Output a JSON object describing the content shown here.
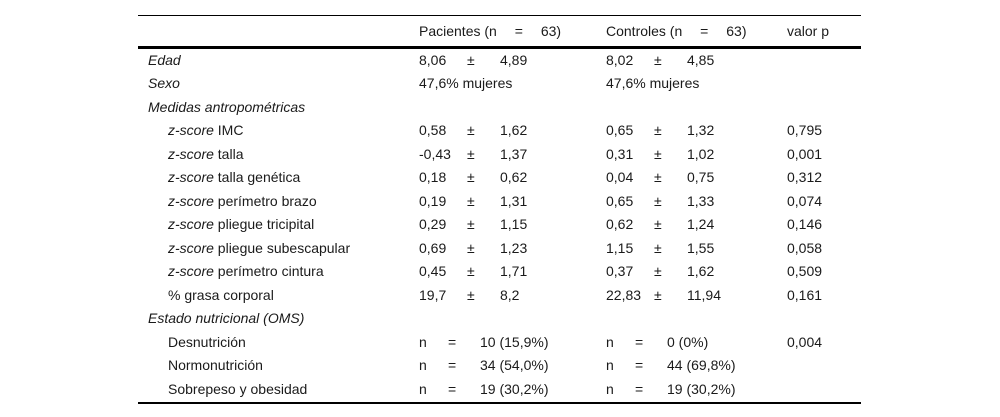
{
  "page": {
    "background": "#ffffff",
    "text_color": "#1a1a1a",
    "rule_color": "#000000"
  },
  "header": {
    "patients": {
      "label": "Pacientes (n",
      "eq": "=",
      "count": "63)"
    },
    "controls": {
      "label": "Controles (n",
      "eq": "=",
      "count": "63)"
    },
    "p_label": "valor p"
  },
  "rows": [
    {
      "name": "edad",
      "label_italic": "Edad",
      "label_rest": "",
      "indent": false,
      "patients": {
        "type": "triple",
        "a": "8,06",
        "sep": "±",
        "b": "4,89"
      },
      "controls": {
        "type": "triple",
        "a": "8,02",
        "sep": "±",
        "b": "4,85"
      },
      "p": ""
    },
    {
      "name": "sexo",
      "label_italic": "Sexo",
      "label_rest": "",
      "indent": false,
      "patients": {
        "type": "text",
        "text": "47,6% mujeres"
      },
      "controls": {
        "type": "text",
        "text": "47,6% mujeres"
      },
      "p": ""
    },
    {
      "name": "medidas-antropometricas",
      "label_italic": "Medidas antropométricas",
      "label_rest": "",
      "indent": false,
      "patients": {
        "type": "empty"
      },
      "controls": {
        "type": "empty"
      },
      "p": ""
    },
    {
      "name": "zscore-imc",
      "label_italic": "z-score",
      "label_rest": " IMC",
      "indent": true,
      "patients": {
        "type": "triple",
        "a": "0,58",
        "sep": "±",
        "b": "1,62"
      },
      "controls": {
        "type": "triple",
        "a": "0,65",
        "sep": "±",
        "b": "1,32"
      },
      "p": "0,795"
    },
    {
      "name": "zscore-talla",
      "label_italic": "z-score",
      "label_rest": " talla",
      "indent": true,
      "patients": {
        "type": "triple",
        "a": "-0,43",
        "sep": "±",
        "b": "1,37"
      },
      "controls": {
        "type": "triple",
        "a": "0,31",
        "sep": "±",
        "b": "1,02"
      },
      "p": "0,001"
    },
    {
      "name": "zscore-talla-genetica",
      "label_italic": "z-score",
      "label_rest": " talla genética",
      "indent": true,
      "patients": {
        "type": "triple",
        "a": "0,18",
        "sep": "±",
        "b": "0,62"
      },
      "controls": {
        "type": "triple",
        "a": "0,04",
        "sep": "±",
        "b": "0,75"
      },
      "p": "0,312"
    },
    {
      "name": "zscore-perimetro-brazo",
      "label_italic": "z-score",
      "label_rest": " perímetro brazo",
      "indent": true,
      "patients": {
        "type": "triple",
        "a": "0,19",
        "sep": "±",
        "b": "1,31"
      },
      "controls": {
        "type": "triple",
        "a": "0,65",
        "sep": "±",
        "b": "1,33"
      },
      "p": "0,074"
    },
    {
      "name": "zscore-pliegue-tricipital",
      "label_italic": "z-score",
      "label_rest": " pliegue tricipital",
      "indent": true,
      "patients": {
        "type": "triple",
        "a": "0,29",
        "sep": "±",
        "b": "1,15"
      },
      "controls": {
        "type": "triple",
        "a": "0,62",
        "sep": "±",
        "b": "1,24"
      },
      "p": "0,146"
    },
    {
      "name": "zscore-pliegue-subescapular",
      "label_italic": "z-score",
      "label_rest": " pliegue subescapular",
      "indent": true,
      "patients": {
        "type": "triple",
        "a": "0,69",
        "sep": "±",
        "b": "1,23"
      },
      "controls": {
        "type": "triple",
        "a": "1,15",
        "sep": "±",
        "b": "1,55"
      },
      "p": "0,058"
    },
    {
      "name": "zscore-perimetro-cintura",
      "label_italic": "z-score",
      "label_rest": " perímetro cintura",
      "indent": true,
      "patients": {
        "type": "triple",
        "a": "0,45",
        "sep": "±",
        "b": "1,71"
      },
      "controls": {
        "type": "triple",
        "a": "0,37",
        "sep": "±",
        "b": "1,62"
      },
      "p": "0,509"
    },
    {
      "name": "grasa-corporal",
      "label_italic": "",
      "label_rest": "% grasa corporal",
      "indent": true,
      "patients": {
        "type": "triple",
        "a": "19,7",
        "sep": "±",
        "b": "8,2"
      },
      "controls": {
        "type": "triple",
        "a": "22,83",
        "sep": "±",
        "b": "11,94"
      },
      "p": "0,161"
    },
    {
      "name": "estado-nutricional-oms",
      "label_italic": "Estado nutricional (OMS)",
      "label_rest": "",
      "indent": false,
      "patients": {
        "type": "empty"
      },
      "controls": {
        "type": "empty"
      },
      "p": ""
    },
    {
      "name": "desnutricion",
      "label_italic": "",
      "label_rest": "Desnutrición",
      "indent": true,
      "patients": {
        "type": "ntriple",
        "a": "n",
        "sep": "=",
        "b": "10 (15,9%)"
      },
      "controls": {
        "type": "ntriple",
        "a": "n",
        "sep": "=",
        "b": "0 (0%)"
      },
      "p": "0,004"
    },
    {
      "name": "normonutricion",
      "label_italic": "",
      "label_rest": "Normonutrición",
      "indent": true,
      "patients": {
        "type": "ntriple",
        "a": "n",
        "sep": "=",
        "b": "34 (54,0%)"
      },
      "controls": {
        "type": "ntriple",
        "a": "n",
        "sep": "=",
        "b": "44 (69,8%)"
      },
      "p": ""
    },
    {
      "name": "sobrepeso-y-obesidad",
      "label_italic": "",
      "label_rest": "Sobrepeso y obesidad",
      "indent": true,
      "patients": {
        "type": "ntriple",
        "a": "n",
        "sep": "=",
        "b": "19 (30,2%)"
      },
      "controls": {
        "type": "ntriple",
        "a": "n",
        "sep": "=",
        "b": "19 (30,2%)"
      },
      "p": ""
    }
  ]
}
